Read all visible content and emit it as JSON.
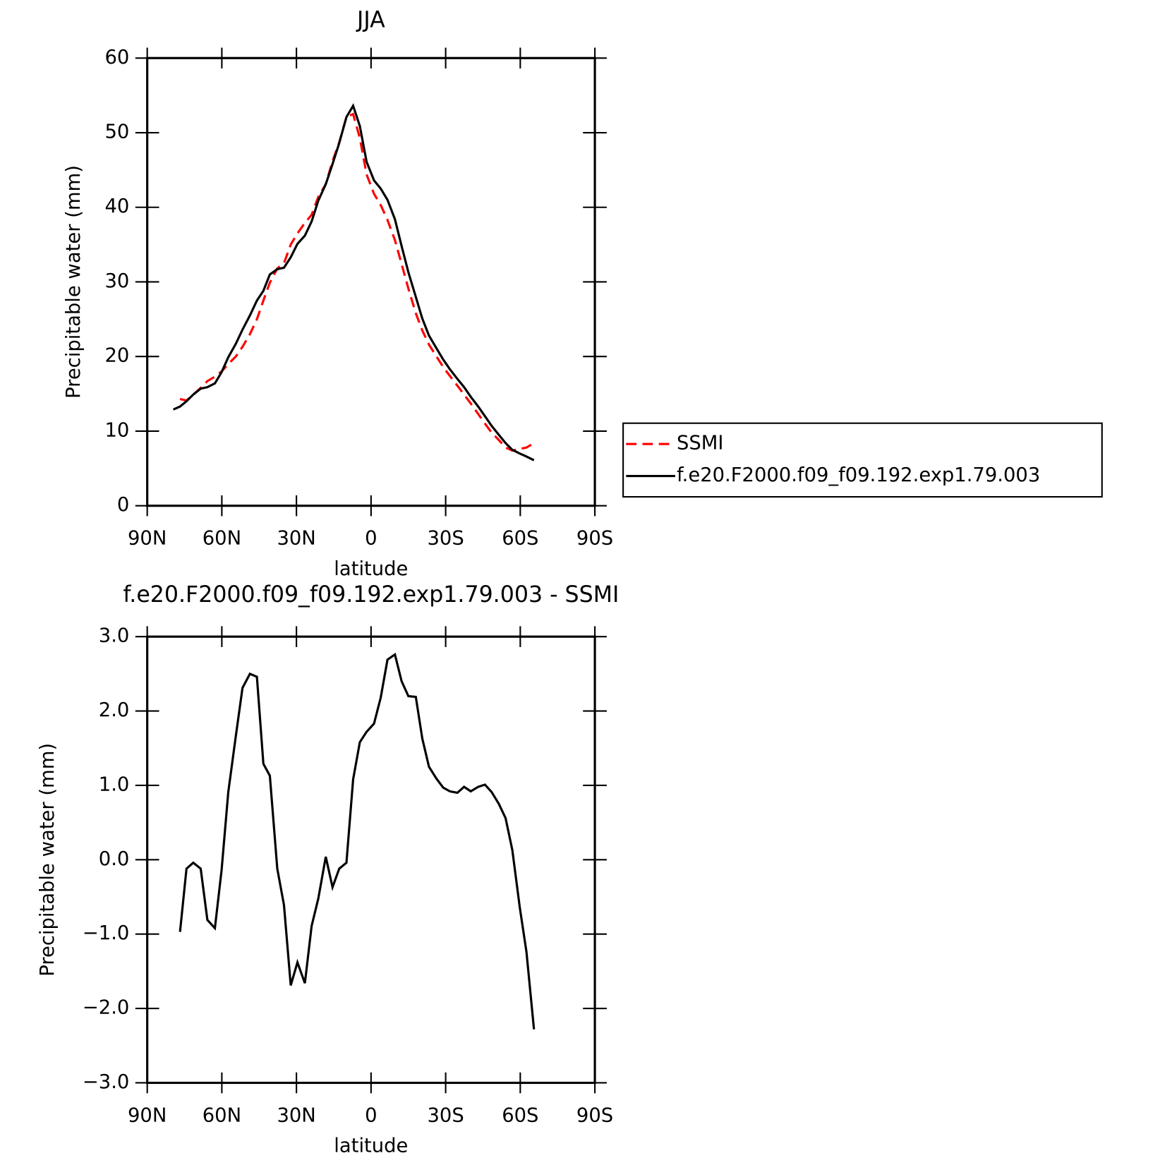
{
  "chart_data": [
    {
      "type": "line",
      "title": "JJA",
      "xlabel": "latitude",
      "ylabel": "Precipitable water (mm)",
      "x": [
        79.5,
        76.8,
        74.2,
        71.5,
        68.5,
        65.8,
        62.8,
        60.1,
        57.4,
        54.4,
        51.7,
        48.7,
        45.9,
        43.3,
        40.7,
        37.7,
        35.0,
        32.3,
        29.6,
        26.6,
        23.9,
        21.2,
        18.2,
        15.5,
        12.8,
        9.9,
        7.2,
        4.5,
        1.8,
        -1.2,
        -3.9,
        -6.6,
        -9.6,
        -12.3,
        -15.0,
        -18.0,
        -20.6,
        -23.3,
        -26.3,
        -29.0,
        -31.7,
        -34.7,
        -37.4,
        -40.1,
        -43.1,
        -45.8,
        -48.5,
        -51.4,
        -54.1,
        -56.8,
        -59.8,
        -62.5,
        -65.5
      ],
      "series": [
        {
          "name": "SSMI",
          "color": "#ff0000",
          "linestyle": "dashed",
          "values": [
            null,
            14.3,
            14.1,
            14.9,
            15.8,
            16.7,
            17.3,
            18.0,
            19.0,
            20.0,
            21.3,
            23.0,
            25.0,
            27.5,
            29.9,
            31.8,
            32.5,
            35.0,
            36.5,
            37.9,
            39.0,
            41.4,
            43.1,
            46.2,
            48.7,
            52.1,
            52.5,
            49.3,
            44.4,
            41.8,
            40.3,
            38.3,
            35.6,
            32.4,
            29.1,
            25.8,
            23.5,
            21.6,
            20.0,
            18.6,
            17.4,
            16.1,
            14.9,
            13.7,
            12.3,
            11.0,
            9.8,
            8.8,
            7.8,
            7.4,
            7.6,
            7.8,
            8.4
          ]
        },
        {
          "name": "f.e20.F2000.f09_f09.192.exp1.79.003",
          "color": "#000000",
          "linestyle": "solid",
          "values": [
            12.9,
            13.3,
            14.0,
            14.9,
            15.7,
            15.9,
            16.4,
            17.9,
            19.9,
            21.7,
            23.6,
            25.5,
            27.5,
            28.8,
            31.0,
            31.7,
            31.9,
            33.3,
            35.1,
            36.2,
            38.1,
            40.9,
            43.1,
            45.8,
            48.6,
            52.1,
            53.6,
            50.9,
            46.1,
            43.6,
            42.5,
            41.0,
            38.4,
            34.8,
            31.3,
            28.0,
            25.1,
            22.8,
            21.1,
            19.6,
            18.3,
            17.0,
            15.9,
            14.6,
            13.3,
            12.0,
            10.7,
            9.5,
            8.4,
            7.5,
            7.0,
            6.6,
            6.1
          ]
        }
      ],
      "xlim": [
        90,
        -90
      ],
      "xticks": [
        {
          "value": 90,
          "label": "90N"
        },
        {
          "value": 60,
          "label": "60N"
        },
        {
          "value": 30,
          "label": "30N"
        },
        0,
        {
          "value": -30,
          "label": "30S"
        },
        {
          "value": -60,
          "label": "60S"
        },
        {
          "value": -90,
          "label": "90S"
        }
      ],
      "ylim": [
        0,
        60
      ],
      "yticks": [
        0,
        10,
        20,
        30,
        40,
        50,
        60
      ],
      "legend": "right"
    },
    {
      "type": "line",
      "title": "f.e20.F2000.f09_f09.192.exp1.79.003 - SSMI",
      "xlabel": "latitude",
      "ylabel": "Precipitable water (mm)",
      "x": [
        79.5,
        76.8,
        74.2,
        71.5,
        68.5,
        65.8,
        62.8,
        60.1,
        57.4,
        54.4,
        51.7,
        48.7,
        45.9,
        43.3,
        40.7,
        37.7,
        35.0,
        32.3,
        29.6,
        26.6,
        23.9,
        21.2,
        18.2,
        15.5,
        12.8,
        9.9,
        7.2,
        4.5,
        1.8,
        -1.2,
        -3.9,
        -6.6,
        -9.6,
        -12.3,
        -15.0,
        -18.0,
        -20.6,
        -23.3,
        -26.3,
        -29.0,
        -31.7,
        -34.7,
        -37.4,
        -40.1,
        -43.1,
        -45.8,
        -48.5,
        -51.4,
        -54.1,
        -56.8,
        -59.8,
        -62.5,
        -65.5
      ],
      "color": "#000000",
      "values": [
        null,
        -0.97,
        -0.12,
        -0.04,
        -0.12,
        -0.81,
        -0.92,
        -0.14,
        0.91,
        1.66,
        2.31,
        2.5,
        2.46,
        1.29,
        1.13,
        -0.12,
        -0.61,
        -1.69,
        -1.38,
        -1.66,
        -0.89,
        -0.52,
        0.04,
        -0.37,
        -0.12,
        -0.04,
        1.08,
        1.58,
        1.72,
        1.83,
        2.18,
        2.69,
        2.76,
        2.4,
        2.2,
        2.19,
        1.63,
        1.25,
        1.09,
        0.97,
        0.92,
        0.9,
        0.98,
        0.92,
        0.98,
        1.01,
        0.91,
        0.75,
        0.56,
        0.13,
        -0.64,
        -1.24,
        -2.28
      ],
      "xlim": [
        90,
        -90
      ],
      "xticks": [
        {
          "value": 90,
          "label": "90N"
        },
        {
          "value": 60,
          "label": "60N"
        },
        {
          "value": 30,
          "label": "30N"
        },
        0,
        {
          "value": -30,
          "label": "30S"
        },
        {
          "value": -60,
          "label": "60S"
        },
        {
          "value": -90,
          "label": "90S"
        }
      ],
      "ylim": [
        -3,
        3
      ],
      "yticks": [
        {
          "value": -3,
          "label": "−3.0"
        },
        {
          "value": -2,
          "label": "−2.0"
        },
        {
          "value": -1,
          "label": "−1.0"
        },
        {
          "value": 0,
          "label": "0.0"
        },
        {
          "value": 1,
          "label": "1.0"
        },
        {
          "value": 2,
          "label": "2.0"
        },
        {
          "value": 3,
          "label": "3.0"
        }
      ]
    }
  ]
}
